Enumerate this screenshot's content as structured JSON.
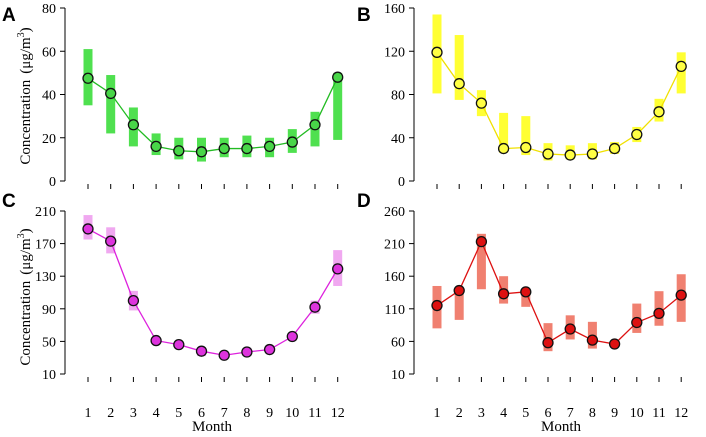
{
  "figure": {
    "ylabel_prefix": "Concentration",
    "ylabel_unit_a": "(μg/m",
    "ylabel_unit_sup": "3",
    "ylabel_unit_b": ")",
    "xlabel": "Month"
  },
  "chart_data": [
    {
      "id": "A",
      "type": "line",
      "panel_label": "A",
      "color": "#4fe04f",
      "line_color": "#22bb22",
      "marker_fill": "#48d648",
      "categories": [
        "1",
        "2",
        "3",
        "4",
        "5",
        "6",
        "7",
        "8",
        "9",
        "10",
        "11",
        "12"
      ],
      "values": [
        47.5,
        40.5,
        26,
        16,
        14,
        13.5,
        15,
        15,
        16,
        18,
        26,
        48
      ],
      "range_low": [
        35,
        22,
        16,
        12,
        10,
        9,
        11,
        11,
        11,
        13,
        16,
        19
      ],
      "range_high": [
        61,
        49,
        34,
        22,
        20,
        20,
        20,
        21,
        20,
        24,
        32,
        50
      ],
      "ylim": [
        0,
        80
      ],
      "yticks": [
        "0",
        "20",
        "40",
        "60",
        "80"
      ],
      "ytick_values": [
        0,
        20,
        40,
        60,
        80
      ],
      "show_ylabel": true,
      "show_xticks": false
    },
    {
      "id": "B",
      "type": "line",
      "panel_label": "B",
      "color": "#ffff33",
      "line_color": "#f0e000",
      "marker_fill": "#ffff44",
      "categories": [
        "1",
        "2",
        "3",
        "4",
        "5",
        "6",
        "7",
        "8",
        "9",
        "10",
        "11",
        "12"
      ],
      "values": [
        119,
        90,
        72,
        30,
        31,
        25,
        24,
        25,
        30,
        43,
        64,
        106
      ],
      "range_low": [
        81,
        75,
        60,
        26,
        24,
        19,
        20,
        20,
        25,
        36,
        55,
        81
      ],
      "range_high": [
        154,
        135,
        84,
        63,
        60,
        35,
        33,
        35,
        36,
        50,
        76,
        119
      ],
      "ylim": [
        0,
        160
      ],
      "yticks": [
        "0",
        "40",
        "80",
        "120",
        "160"
      ],
      "ytick_values": [
        0,
        40,
        80,
        120,
        160
      ],
      "show_ylabel": false,
      "show_xticks": false
    },
    {
      "id": "C",
      "type": "line",
      "panel_label": "C",
      "color": "#f0a8f0",
      "line_color": "#dd22dd",
      "marker_fill": "#dd33dd",
      "categories": [
        "1",
        "2",
        "3",
        "4",
        "5",
        "6",
        "7",
        "8",
        "9",
        "10",
        "11",
        "12"
      ],
      "values": [
        188,
        173,
        100,
        51,
        46,
        38,
        33,
        37,
        40,
        56,
        92,
        139
      ],
      "range_low": [
        175,
        158,
        88,
        47,
        41,
        32,
        29,
        32,
        35,
        51,
        84,
        118
      ],
      "range_high": [
        205,
        190,
        112,
        53,
        50,
        43,
        38,
        42,
        45,
        60,
        100,
        162
      ],
      "ylim": [
        10,
        210
      ],
      "yticks": [
        "10",
        "50",
        "90",
        "130",
        "170",
        "210"
      ],
      "ytick_values": [
        10,
        50,
        90,
        130,
        170,
        210
      ],
      "show_ylabel": true,
      "show_xticks": true
    },
    {
      "id": "D",
      "type": "line",
      "panel_label": "D",
      "color": "#f08070",
      "line_color": "#dd1111",
      "marker_fill": "#dd1111",
      "categories": [
        "1",
        "2",
        "3",
        "4",
        "5",
        "6",
        "7",
        "8",
        "9",
        "10",
        "11",
        "12"
      ],
      "values": [
        115,
        138,
        213,
        133,
        136,
        58,
        79,
        62,
        56,
        89,
        103,
        131
      ],
      "range_low": [
        80,
        93,
        140,
        118,
        113,
        45,
        63,
        49,
        53,
        73,
        84,
        90
      ],
      "range_high": [
        145,
        141,
        225,
        160,
        140,
        88,
        100,
        90,
        60,
        118,
        137,
        163
      ],
      "ylim": [
        10,
        260
      ],
      "yticks": [
        "10",
        "60",
        "110",
        "160",
        "210",
        "260"
      ],
      "ytick_values": [
        10,
        60,
        110,
        160,
        210,
        260
      ],
      "show_ylabel": false,
      "show_xticks": true
    }
  ]
}
